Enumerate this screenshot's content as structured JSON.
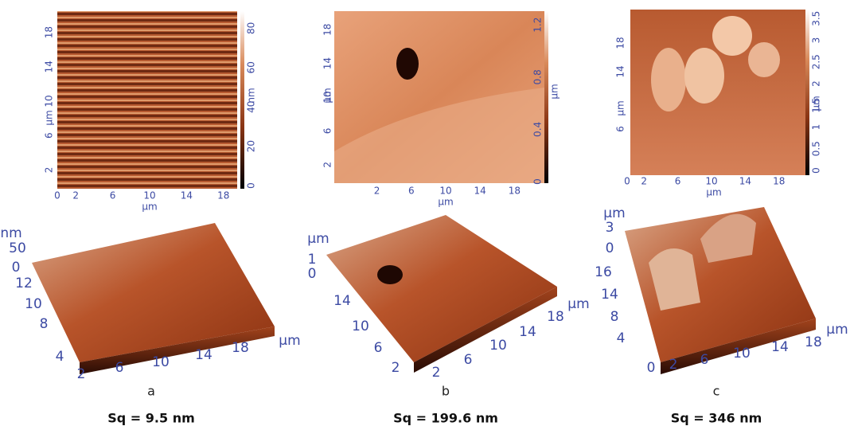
{
  "panels": [
    {
      "label": "a",
      "sq": "Sq = 9.5 nm",
      "map": {
        "y_ticks": [
          "2",
          "6",
          "10",
          "14",
          "18"
        ],
        "y_label": "µm",
        "x_ticks": [
          "0",
          "2",
          "6",
          "10",
          "14",
          "18"
        ],
        "x_label": "µm",
        "colorbar_ticks": [
          "0",
          "20",
          "40",
          "60",
          "80"
        ],
        "colorbar_label": "nm"
      },
      "surface": {
        "z_label": "nm",
        "z_ticks": [
          "50",
          "0"
        ],
        "y_ticks": [
          "12",
          "10",
          "8",
          "4"
        ],
        "x_ticks": [
          "2",
          "6",
          "10",
          "14",
          "18"
        ],
        "x_label": "µm"
      }
    },
    {
      "label": "b",
      "sq": "Sq = 199.6 nm",
      "map": {
        "y_ticks": [
          "2",
          "6",
          "10",
          "14",
          "18"
        ],
        "y_label": "µm",
        "x_ticks": [
          "2",
          "6",
          "10",
          "14",
          "18"
        ],
        "x_label": "µm",
        "colorbar_ticks": [
          "0",
          "0.4",
          "0.8",
          "1.2"
        ],
        "colorbar_label": "µm"
      },
      "surface": {
        "z_label": "µm",
        "z_ticks": [
          "1",
          "0"
        ],
        "y_ticks": [
          "14",
          "10",
          "6",
          "2"
        ],
        "x_ticks": [
          "2",
          "6",
          "10",
          "14",
          "18"
        ],
        "x_label": "µm"
      }
    },
    {
      "label": "c",
      "sq": "Sq = 346 nm",
      "map": {
        "y_ticks": [
          "6",
          "14",
          "18"
        ],
        "y_label": "µm",
        "x_ticks": [
          "0",
          "2",
          "6",
          "10",
          "14",
          "18"
        ],
        "x_label": "µm",
        "colorbar_ticks": [
          "0",
          "0.5",
          "1",
          "1.5",
          "2",
          "2.5",
          "3",
          "3.5"
        ],
        "colorbar_label": "µm"
      },
      "surface": {
        "z_label": "µm",
        "z_ticks": [
          "3",
          "0"
        ],
        "y_ticks": [
          "16",
          "14",
          "8",
          "4"
        ],
        "x_ticks": [
          "0",
          "2",
          "6",
          "10",
          "14",
          "18"
        ],
        "x_label": "µm"
      }
    }
  ]
}
